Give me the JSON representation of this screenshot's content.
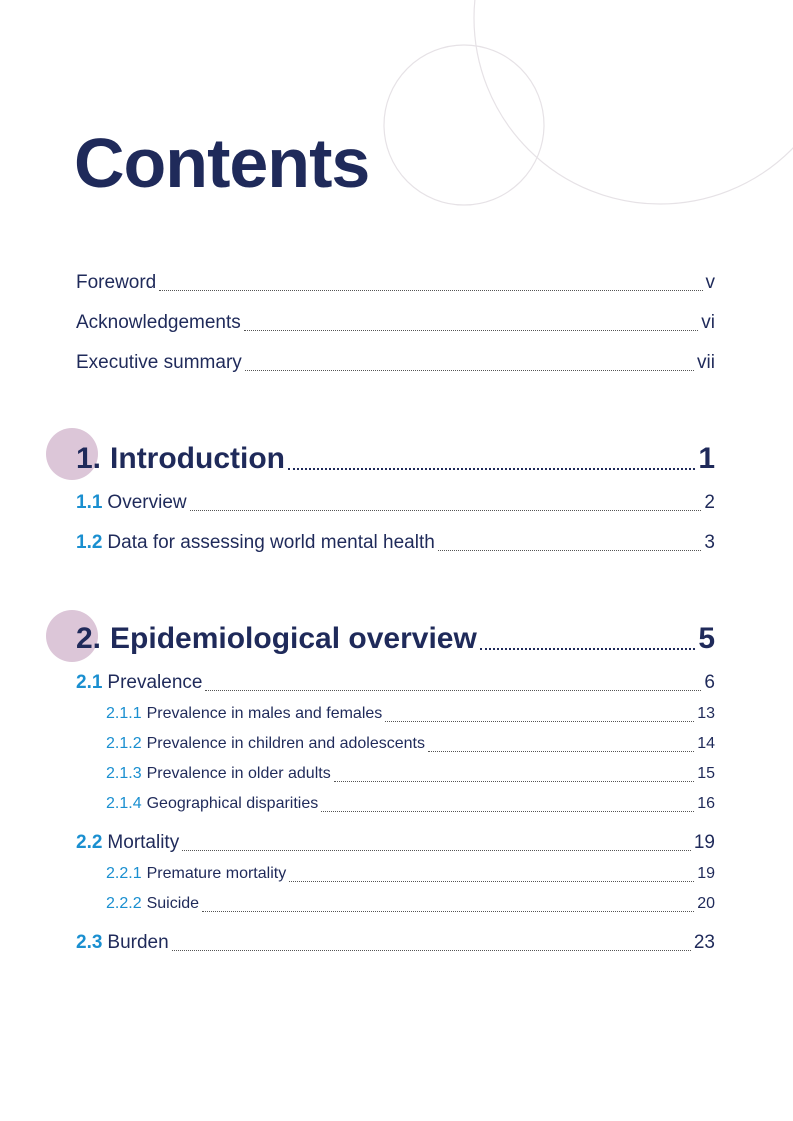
{
  "title": "Contents",
  "front": [
    {
      "label": "Foreword",
      "page": "v"
    },
    {
      "label": "Acknowledgements",
      "page": "vi"
    },
    {
      "label": "Executive summary",
      "page": "vii"
    }
  ],
  "chapters": [
    {
      "number": "1.",
      "title": "Introduction",
      "page": "1",
      "sections": [
        {
          "number": "1.1",
          "title": "Overview",
          "page": "2"
        },
        {
          "number": "1.2",
          "title": "Data for assessing world mental health",
          "page": "3"
        }
      ]
    },
    {
      "number": "2.",
      "title": "Epidemiological overview",
      "page": "5",
      "sections": [
        {
          "number": "2.1",
          "title": "Prevalence",
          "page": "6",
          "subsections": [
            {
              "number": "2.1.1",
              "title": "Prevalence in males and females",
              "page": "13"
            },
            {
              "number": "2.1.2",
              "title": "Prevalence in children and adolescents",
              "page": "14"
            },
            {
              "number": "2.1.3",
              "title": "Prevalence in older adults",
              "page": "15"
            },
            {
              "number": "2.1.4",
              "title": "Geographical disparities",
              "page": "16"
            }
          ]
        },
        {
          "number": "2.2",
          "title": "Mortality",
          "page": "19",
          "subsections": [
            {
              "number": "2.2.1",
              "title": "Premature mortality",
              "page": "19"
            },
            {
              "number": "2.2.2",
              "title": "Suicide",
              "page": "20"
            }
          ]
        },
        {
          "number": "2.3",
          "title": "Burden",
          "page": "23"
        }
      ]
    }
  ]
}
